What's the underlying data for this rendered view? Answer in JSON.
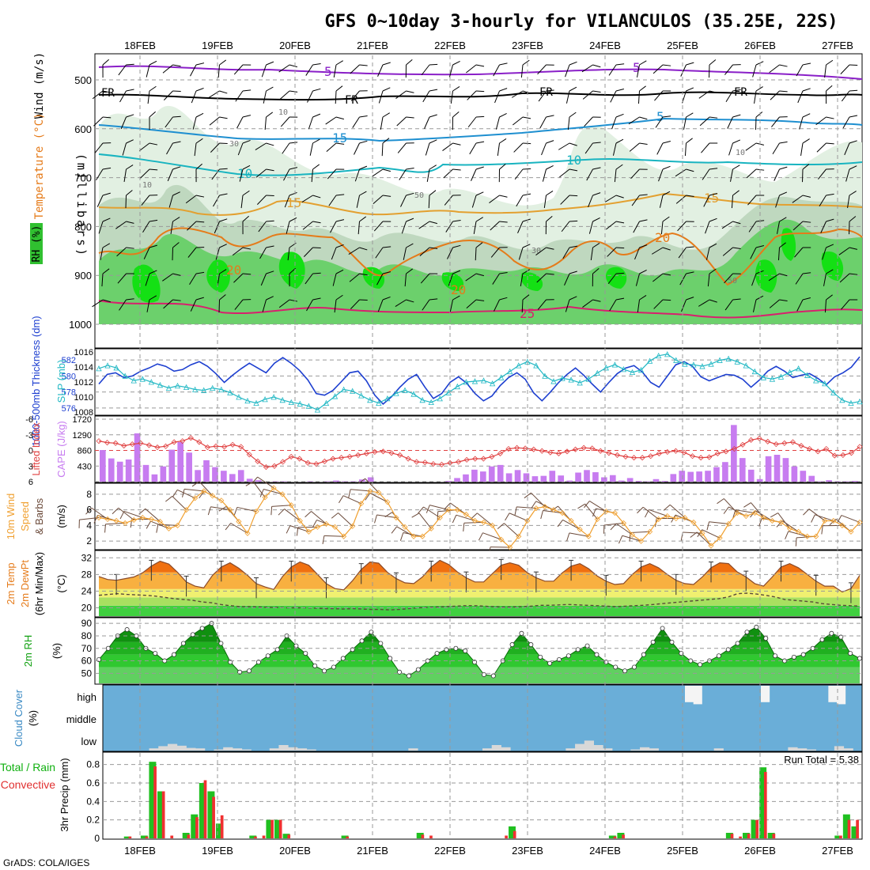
{
  "title": "GFS 0~10day 3-hourly for VILANCULOS (35.25E, 22S)",
  "footer": "GrADS: COLA/IGES",
  "dates": [
    "18FEB",
    "19FEB",
    "20FEB",
    "21FEB",
    "22FEB",
    "23FEB",
    "24FEB",
    "25FEB",
    "26FEB",
    "27FEB"
  ],
  "colors": {
    "grid": "#9a9a9a",
    "wind5": "#8a1fc8",
    "freezing": "#000000",
    "iso15": "#1e8fd0",
    "iso10": "#19b4c0",
    "iso15b": "#e3a030",
    "iso20": "#e57b1a",
    "iso25": "#d8206e",
    "rh_light": "#e2f0e2",
    "rh_mid": "#bfd8bf",
    "rh_green": "#6cd06c",
    "rh_bright": "#14e014",
    "thickness": "#1d3fd0",
    "slp": "#22b8c4",
    "lifted": "#e04040",
    "cape": "#c77cf0",
    "wind10": "#f0a030",
    "barb": "#6b4a3a",
    "temp_hot": "#f07010",
    "temp_warm": "#f8b040",
    "dew": "#5a4a3a",
    "rh2m_top": "#10a010",
    "rh2m_mid": "#30d030",
    "cloud": "#6aaed8",
    "precip_total": "#20c020",
    "precip_conv": "#f03030"
  },
  "panels": {
    "upper": {
      "ylabel_rh": "RH (%)",
      "ylabel_temp": "Temperature (°C)",
      "ylabel_wind": "Wind (m/s)",
      "ylabel_p": "(millibars)",
      "yticks": [
        "500",
        "600",
        "700",
        "800",
        "900",
        "1000"
      ],
      "labels": {
        "five": "5",
        "fr": "FR",
        "ten": "10",
        "fifteen": "15",
        "twenty": "20",
        "twentyfive": "25",
        "thirty": "30",
        "fifty": "50"
      }
    },
    "thickness": {
      "ylabel_left": "1000-500mb Thickness (dm)",
      "ylabel_right": "SLP (mb)",
      "left_ticks": [
        "582",
        "580",
        "578",
        "576"
      ],
      "right_ticks": [
        "1016",
        "1014",
        "1012",
        "1010",
        "1008"
      ]
    },
    "lifted": {
      "ylabel_left": "Lifted Index",
      "ylabel_right": "CAPE (J/kg)",
      "left_ticks": [
        "-6",
        "-3",
        "0",
        "3",
        "6"
      ],
      "right_ticks": [
        "1720",
        "1290",
        "860",
        "430"
      ]
    },
    "wind": {
      "ylabel": "10m Wind Speed & Barbs (m/s)",
      "line1": "10m Wind",
      "line2": "Speed",
      "line3": "& Barbs",
      "unit": "(m/s)",
      "ticks": [
        "8",
        "6",
        "4",
        "2"
      ]
    },
    "temp": {
      "line1": "2m Temp",
      "line2": "2m DewPt",
      "line3": "(6hr Min/Max)",
      "unit": "(°C)",
      "ticks": [
        "32",
        "28",
        "24",
        "20"
      ]
    },
    "rh": {
      "ylabel": "2m RH",
      "unit": "(%)",
      "ticks": [
        "90",
        "80",
        "70",
        "60",
        "50"
      ]
    },
    "cloud": {
      "ylabel": "Cloud Cover",
      "unit": "(%)",
      "levels": [
        "high",
        "middle",
        "low"
      ]
    },
    "precip": {
      "ylabel_green": "Total / Rain",
      "ylabel_red": "Convective",
      "ylabel": "3hr Precip (mm)",
      "ticks": [
        "0.8",
        "0.6",
        "0.4",
        "0.2",
        "0"
      ],
      "run_total": "Run Total = 5.38"
    }
  },
  "chart_data": [
    {
      "type": "line",
      "name": "1000-500mb Thickness (dm)",
      "ylim": [
        575.5,
        583
      ],
      "values": [
        579,
        580.2,
        580.4,
        579.8,
        580,
        580.6,
        581,
        581.5,
        581.2,
        580.6,
        580.8,
        581.4,
        581.8,
        581.2,
        580.3,
        579.2,
        580.1,
        580.9,
        581.6,
        581,
        580.4,
        581.6,
        582.3,
        581.6,
        580.7,
        579.5,
        577.8,
        577.6,
        578.2,
        579.3,
        580.4,
        580.6,
        579.4,
        577.6,
        576.5,
        577.4,
        578.6,
        579.6,
        580.2,
        578.6,
        577.2,
        577.8,
        579.2,
        579.9,
        579.1,
        577.8,
        576.9,
        577.5,
        578.8,
        579.8,
        580.4,
        579.6,
        577.9,
        576.9,
        578,
        579.2,
        580.2,
        581,
        580.1,
        579,
        578,
        579.2,
        580.3,
        581,
        581.3,
        580.5,
        579.2,
        578.6,
        580,
        581.4,
        581.8,
        581.2,
        579.9,
        579.4,
        579.8,
        580.2,
        580.1,
        579.6,
        578.6,
        579.5,
        580.6,
        581.2,
        580.6,
        579.8,
        580.1,
        580.3,
        579.7,
        578.9,
        579.9,
        580.4,
        581.1,
        582.4
      ]
    },
    {
      "type": "line",
      "name": "SLP (mb)",
      "ylim": [
        1008,
        1016
      ],
      "values": [
        1013.8,
        1014.2,
        1013.9,
        1012.8,
        1012.2,
        1012.4,
        1012,
        1011.6,
        1011.2,
        1011.5,
        1011.3,
        1011,
        1010.9,
        1011.2,
        1011,
        1010.6,
        1010,
        1009.5,
        1009.2,
        1009.7,
        1010,
        1009.6,
        1009.3,
        1009.1,
        1008.8,
        1008.3,
        1009.2,
        1010.1,
        1011,
        1010.8,
        1010.2,
        1009.6,
        1009.2,
        1009.8,
        1010.5,
        1010.9,
        1010.4,
        1009.6,
        1009.3,
        1009.8,
        1010.6,
        1011.4,
        1012,
        1012.1,
        1012.2,
        1011.8,
        1012.6,
        1013.4,
        1014.2,
        1014.7,
        1014.2,
        1012.8,
        1012.1,
        1012.5,
        1012.3,
        1011.9,
        1012.4,
        1013.2,
        1013.9,
        1014.3,
        1013.7,
        1013.3,
        1013.6,
        1014.8,
        1015.5,
        1015.7,
        1014.9,
        1014.4,
        1014.3,
        1014.1,
        1014.4,
        1014.9,
        1015.1,
        1014.7,
        1014.2,
        1013.4,
        1012.6,
        1012.4,
        1012.7,
        1013.3,
        1013.8,
        1012.9,
        1012.2,
        1011.8,
        1010.6,
        1009.6,
        1009.2,
        1009.4
      ]
    },
    {
      "type": "line",
      "name": "Lifted Index",
      "ylim": [
        6,
        -6
      ],
      "values": [
        -1.8,
        -1.5,
        -1.4,
        -0.9,
        -1.2,
        -1.4,
        -1,
        -0.6,
        -0.8,
        -1.6,
        -1.8,
        -2.4,
        -1.6,
        -0.6,
        -0.8,
        -0.7,
        -1.1,
        -0.7,
        0.8,
        2.1,
        3.2,
        3,
        2.2,
        1.2,
        1.6,
        2.4,
        2.6,
        2.1,
        1.6,
        1.4,
        1.2,
        0.9,
        0.6,
        0.3,
        0.2,
        0.5,
        0.9,
        1.6,
        2.2,
        2.3,
        2.6,
        2.7,
        2.4,
        2.2,
        1.8,
        1.6,
        1.6,
        1.2,
        0.6,
        -0.3,
        -0.5,
        -0.4,
        -0.2,
        0.1,
        0.4,
        0.6,
        0.2,
        -0.2,
        -0.5,
        -0.4,
        0.1,
        0.5,
        0.9,
        1.2,
        1.4,
        1.4,
        1.1,
        0.6,
        0.3,
        0.1,
        0.4,
        1.1,
        1.4,
        1.3,
        0.6,
        0.2,
        -0.3,
        -1.1,
        -2,
        -2.3,
        -1.7,
        -1.2,
        -1.4,
        -1.6,
        -0.9,
        -0.3,
        0.2,
        -0.3,
        1,
        0.9,
        0.5,
        -0.7
      ]
    },
    {
      "type": "bar",
      "name": "CAPE (J/kg)",
      "ylim": [
        0,
        1720
      ],
      "values": [
        870,
        640,
        550,
        610,
        1330,
        460,
        200,
        420,
        880,
        1090,
        800,
        320,
        590,
        400,
        300,
        210,
        320,
        80,
        40,
        0,
        10,
        10,
        0,
        0,
        10,
        0,
        10,
        30,
        10,
        10,
        60,
        120,
        0,
        0,
        0,
        0,
        0,
        0,
        0,
        0,
        20,
        100,
        200,
        330,
        280,
        420,
        460,
        230,
        320,
        230,
        150,
        160,
        300,
        170,
        30,
        250,
        320,
        260,
        120,
        180,
        30,
        100,
        20,
        10,
        70,
        20,
        210,
        300,
        270,
        280,
        300,
        400,
        540,
        1560,
        650,
        330,
        70,
        700,
        740,
        650,
        420,
        300,
        160,
        10,
        40,
        10,
        10,
        20
      ]
    },
    {
      "type": "line",
      "name": "10m Wind Speed (m/s)",
      "ylim": [
        1,
        9
      ],
      "values": [
        5,
        4.8,
        4.6,
        4.3,
        4.7,
        5,
        4.8,
        4.5,
        3.6,
        4,
        6,
        7.5,
        8.4,
        7.8,
        7.2,
        6,
        4.5,
        3,
        5.8,
        7.6,
        8.8,
        8,
        6.6,
        4.6,
        3.2,
        3.8,
        4.2,
        3.8,
        2.6,
        3.9,
        6.8,
        8.4,
        8.2,
        7,
        5,
        3.8,
        2.6,
        2.6,
        3.6,
        5,
        6,
        6,
        5.4,
        4.6,
        4.4,
        4,
        2.2,
        1.2,
        2.6,
        4.6,
        6.2,
        6.4,
        6,
        5.6,
        4.6,
        3.5,
        2.6,
        4.8,
        5.8,
        5.6,
        4.3,
        2.8,
        2,
        3.2,
        4.8,
        5.2,
        4.9,
        5,
        4.4,
        3,
        1.4,
        2.4,
        4.2,
        5.6,
        5.2,
        5.6,
        5,
        4.6,
        4.4,
        3.6,
        3.2,
        2.6,
        2.6,
        4.6,
        4.6,
        4,
        3.2,
        4.4
      ]
    },
    {
      "type": "area",
      "name": "2m Temp (°C)",
      "ylim": [
        18,
        33
      ],
      "values": [
        27.5,
        26.8,
        26.6,
        27,
        27.4,
        28.4,
        30,
        31.2,
        30.5,
        28.5,
        26.2,
        25.2,
        24.8,
        27.8,
        29.8,
        30.8,
        29.5,
        27.8,
        25.8,
        25,
        24.4,
        27.5,
        29.8,
        31,
        30.2,
        28,
        25.8,
        24.6,
        24.3,
        26.5,
        29.2,
        31,
        30.7,
        28.5,
        27,
        26,
        25.8,
        27.4,
        29.8,
        31.4,
        30.4,
        28.6,
        27.2,
        26.2,
        26.2,
        28.2,
        30.2,
        30.8,
        30.2,
        28.4,
        27.2,
        26.4,
        26.4,
        28.4,
        30,
        30.6,
        29.4,
        27.6,
        26.4,
        25.6,
        25.8,
        28,
        29.8,
        30.6,
        29.6,
        28,
        26.6,
        25.8,
        25.6,
        27.4,
        29.6,
        30.8,
        30.6,
        28.6,
        27.4,
        25.8,
        25.2,
        27.4,
        29.8,
        30.6,
        29.6,
        28,
        26.4,
        25.2,
        25.2,
        23.8,
        24.6,
        27.8
      ]
    },
    {
      "type": "line",
      "name": "2m DewPt (°C)",
      "ylim": [
        18,
        33
      ],
      "values": [
        23,
        23.2,
        23.4,
        23.2,
        23.1,
        23,
        22.8,
        22.5,
        22.2,
        22,
        21.8,
        21.4,
        21.2,
        20.8,
        20.5,
        20.3,
        20.3,
        20.2,
        20.1,
        20.1,
        20,
        20,
        20,
        19.9,
        19.8,
        19.8,
        19.7,
        19.8,
        19.7,
        19.6,
        19.6,
        19.5,
        19.6,
        19.8,
        20,
        20.1,
        20.2,
        20.3,
        20.4,
        20.5,
        20.5,
        20.4,
        20.3,
        20.2,
        20.2,
        20.3,
        20.4,
        20.6,
        20.6,
        20.7,
        20.8,
        20.7,
        20.6,
        20.5,
        20.4,
        20.3,
        20.4,
        20.5,
        20.6,
        20.8,
        21,
        21.2,
        21.4,
        21.6,
        21.8,
        22,
        22.2,
        22.6,
        23.4,
        23.5,
        23.3,
        23,
        22.6,
        22,
        21.8,
        21.6,
        21.4,
        21,
        20.8,
        20.6,
        20.5,
        20.4
      ]
    },
    {
      "type": "area",
      "name": "2m RH (%)",
      "ylim": [
        42,
        92
      ],
      "values": [
        61,
        70,
        80,
        85,
        80,
        70,
        66,
        60,
        65,
        74,
        81,
        86,
        90,
        74,
        59,
        51,
        52,
        59,
        64,
        69,
        80,
        72,
        66,
        56,
        52,
        55,
        62,
        69,
        76,
        83,
        74,
        62,
        51,
        48,
        53,
        60,
        66,
        69,
        70,
        68,
        59,
        49,
        48,
        60,
        73,
        82,
        73,
        63,
        58,
        61,
        64,
        69,
        72,
        65,
        59,
        55,
        52,
        55,
        65,
        75,
        86,
        75,
        66,
        60,
        57,
        60,
        64,
        69,
        74,
        83,
        87,
        78,
        64,
        60,
        63,
        65,
        70,
        77,
        82,
        79,
        66,
        62
      ]
    },
    {
      "type": "bar",
      "name": "Low Cloud Cover (%)",
      "ylim": [
        0,
        100
      ],
      "values": [
        0,
        0,
        0,
        0,
        0,
        10,
        20,
        30,
        22,
        12,
        10,
        0,
        5,
        15,
        10,
        5,
        0,
        0,
        10,
        25,
        15,
        10,
        5,
        0,
        0,
        0,
        0,
        0,
        0,
        0,
        0,
        0,
        0,
        10,
        0,
        0,
        0,
        0,
        0,
        0,
        0,
        10,
        25,
        15,
        0,
        0,
        0,
        0,
        0,
        0,
        10,
        30,
        45,
        25,
        10,
        0,
        0,
        5,
        15,
        10,
        0,
        0,
        0,
        0,
        0,
        0,
        10,
        0,
        0,
        0,
        0,
        0,
        0,
        0,
        15,
        10,
        5,
        0,
        0,
        20,
        10,
        0
      ]
    },
    {
      "type": "bar",
      "name": "High Cloud Cover (%)",
      "ylim": [
        0,
        100
      ],
      "values": [
        0,
        0,
        0,
        0,
        0,
        0,
        0,
        0,
        0,
        0,
        0,
        0,
        0,
        0,
        0,
        0,
        0,
        0,
        0,
        0,
        0,
        0,
        0,
        0,
        0,
        0,
        0,
        0,
        0,
        0,
        0,
        0,
        0,
        0,
        0,
        0,
        0,
        0,
        0,
        0,
        0,
        0,
        0,
        0,
        0,
        0,
        0,
        0,
        0,
        0,
        0,
        0,
        0,
        0,
        0,
        0,
        0,
        0,
        0,
        0,
        0,
        0,
        0,
        0,
        0,
        0,
        0,
        0,
        0,
        80,
        90,
        0,
        0,
        0,
        0,
        0,
        0,
        0,
        80,
        0,
        0,
        0,
        0,
        0,
        0,
        0,
        80,
        90,
        0,
        0
      ]
    },
    {
      "type": "bar",
      "name": "3hr Precip Total/Rain (mm)",
      "ylim": [
        0,
        0.9
      ],
      "values": [
        0,
        0,
        0,
        0.02,
        0,
        0.03,
        0.83,
        0.51,
        0,
        0,
        0.06,
        0.26,
        0.6,
        0.51,
        0.16,
        0,
        0,
        0,
        0.03,
        0,
        0.2,
        0.2,
        0.05,
        0,
        0,
        0,
        0,
        0,
        0,
        0.03,
        0,
        0,
        0,
        0,
        0,
        0,
        0,
        0,
        0.06,
        0,
        0,
        0,
        0,
        0,
        0,
        0,
        0,
        0,
        0,
        0.13,
        0,
        0,
        0,
        0,
        0,
        0,
        0,
        0,
        0,
        0,
        0,
        0.03,
        0.06,
        0,
        0,
        0,
        0,
        0,
        0,
        0,
        0,
        0,
        0,
        0,
        0,
        0.06,
        0,
        0.06,
        0.2,
        0.77,
        0.06,
        0,
        0,
        0,
        0,
        0,
        0,
        0,
        0.03,
        0.26,
        0.13
      ]
    },
    {
      "type": "bar",
      "name": "3hr Precip Convective (mm)",
      "ylim": [
        0,
        0.9
      ],
      "values": [
        0,
        0,
        0,
        0.02,
        0,
        0.02,
        0.78,
        0.51,
        0.03,
        0,
        0.04,
        0.23,
        0.63,
        0.45,
        0.25,
        0,
        0,
        0,
        0.02,
        0.03,
        0.2,
        0.2,
        0.04,
        0,
        0,
        0,
        0,
        0,
        0,
        0.02,
        0,
        0,
        0,
        0,
        0,
        0,
        0,
        0,
        0.04,
        0.03,
        0,
        0,
        0,
        0,
        0,
        0,
        0,
        0,
        0.03,
        0.08,
        0,
        0,
        0,
        0,
        0,
        0,
        0,
        0,
        0,
        0,
        0,
        0.02,
        0.04,
        0,
        0,
        0,
        0,
        0,
        0,
        0,
        0,
        0,
        0,
        0,
        0,
        0.05,
        0.02,
        0.05,
        0.2,
        0.72,
        0.05,
        0,
        0,
        0,
        0,
        0,
        0,
        0,
        0.03,
        0.2,
        0.2
      ]
    }
  ]
}
